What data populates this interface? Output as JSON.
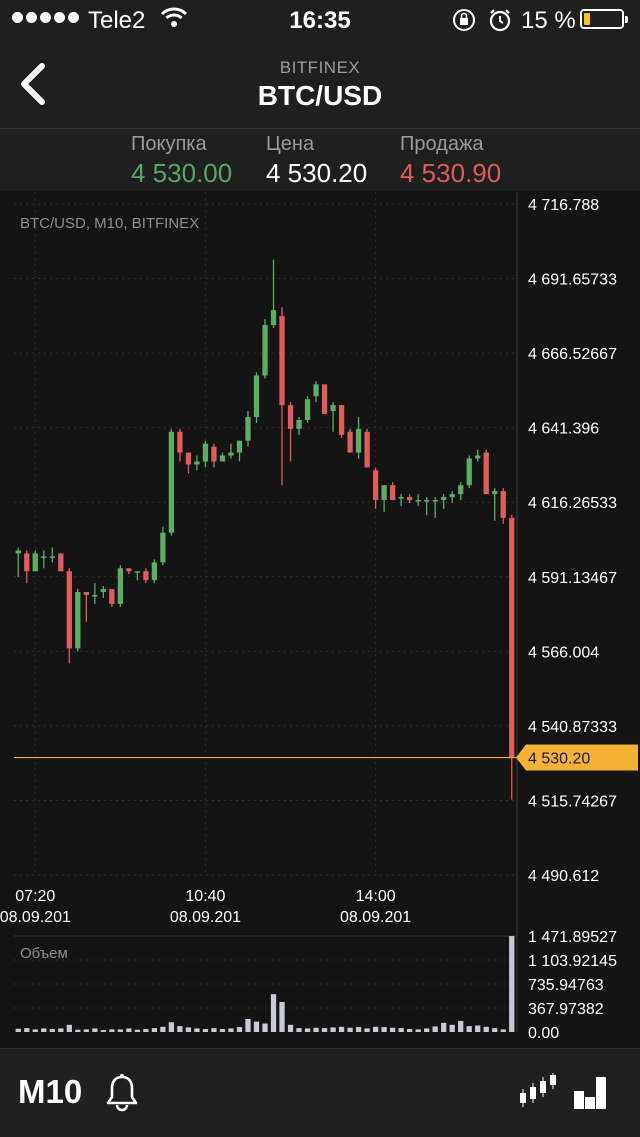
{
  "status_bar": {
    "carrier": "Tele2",
    "time": "16:35",
    "battery_percent": "15 %",
    "battery_level": 0.15,
    "icons": [
      "signal-dots-icon",
      "wifi-icon",
      "orientation-lock-icon",
      "alarm-icon",
      "battery-icon"
    ]
  },
  "nav": {
    "exchange": "BITFINEX",
    "pair": "BTC/USD",
    "back_icon": "chevron-left-icon"
  },
  "quotes": {
    "buy": {
      "label": "Покупка",
      "value": "4 530.00",
      "color": "#55a868"
    },
    "price": {
      "label": "Цена",
      "value": "4 530.20",
      "color": "#ffffff"
    },
    "sell": {
      "label": "Продажа",
      "value": "4 530.90",
      "color": "#e05a5a"
    }
  },
  "toolbar": {
    "timeframe": "M10",
    "icons": [
      "bell-icon",
      "candlestick-icon",
      "bar-chart-icon"
    ]
  },
  "colors": {
    "up": "#5aaf64",
    "down": "#e25c5c",
    "price_line": "#f5b237",
    "volume": "#c8cad8",
    "grid": "#2e2e2e"
  },
  "chart_data": [
    {
      "type": "candlestick",
      "title": "BTC/USD, M10, BITFINEX",
      "y_ticks": [
        "4 716.788",
        "4 691.65733",
        "4 666.52667",
        "4 641.396",
        "4 616.26533",
        "4 591.13467",
        "4 566.004",
        "4 540.87333",
        "4 515.74267",
        "4 490.612"
      ],
      "ylim": [
        4490.612,
        4716.788
      ],
      "x_ticks": [
        {
          "time": "07:20",
          "date": "08.09.201",
          "index": 2
        },
        {
          "time": "10:40",
          "date": "08.09.201",
          "index": 22
        },
        {
          "time": "14:00",
          "date": "08.09.201",
          "index": 42
        }
      ],
      "current_price": {
        "label": "4 530.20",
        "value": 4530.2
      },
      "candles": [
        {
          "o": 4599,
          "h": 4601,
          "l": 4591,
          "c": 4600
        },
        {
          "o": 4599,
          "h": 4600,
          "l": 4589,
          "c": 4593
        },
        {
          "o": 4593,
          "h": 4600,
          "l": 4593,
          "c": 4599
        },
        {
          "o": 4598,
          "h": 4600,
          "l": 4594,
          "c": 4598
        },
        {
          "o": 4598,
          "h": 4601,
          "l": 4596,
          "c": 4598
        },
        {
          "o": 4599,
          "h": 4599,
          "l": 4593,
          "c": 4593
        },
        {
          "o": 4593,
          "h": 4594,
          "l": 4562,
          "c": 4567
        },
        {
          "o": 4567,
          "h": 4587,
          "l": 4566,
          "c": 4586
        },
        {
          "o": 4586,
          "h": 4586,
          "l": 4576,
          "c": 4585
        },
        {
          "o": 4585,
          "h": 4589,
          "l": 4582,
          "c": 4585
        },
        {
          "o": 4586,
          "h": 4588,
          "l": 4584,
          "c": 4587
        },
        {
          "o": 4587,
          "h": 4587,
          "l": 4581,
          "c": 4582
        },
        {
          "o": 4582,
          "h": 4595,
          "l": 4581,
          "c": 4594
        },
        {
          "o": 4594,
          "h": 4594,
          "l": 4592,
          "c": 4593
        },
        {
          "o": 4593,
          "h": 4593,
          "l": 4590,
          "c": 4593
        },
        {
          "o": 4593,
          "h": 4594,
          "l": 4589,
          "c": 4590
        },
        {
          "o": 4590,
          "h": 4597,
          "l": 4589,
          "c": 4596
        },
        {
          "o": 4596,
          "h": 4608,
          "l": 4595,
          "c": 4606
        },
        {
          "o": 4606,
          "h": 4641,
          "l": 4605,
          "c": 4640
        },
        {
          "o": 4640,
          "h": 4641,
          "l": 4630,
          "c": 4633
        },
        {
          "o": 4633,
          "h": 4633,
          "l": 4626,
          "c": 4629
        },
        {
          "o": 4629,
          "h": 4632,
          "l": 4627,
          "c": 4630
        },
        {
          "o": 4630,
          "h": 4637,
          "l": 4628,
          "c": 4636
        },
        {
          "o": 4635,
          "h": 4636,
          "l": 4628,
          "c": 4630
        },
        {
          "o": 4630,
          "h": 4633,
          "l": 4630,
          "c": 4632
        },
        {
          "o": 4632,
          "h": 4636,
          "l": 4631,
          "c": 4633
        },
        {
          "o": 4633,
          "h": 4637,
          "l": 4630,
          "c": 4637
        },
        {
          "o": 4637,
          "h": 4647,
          "l": 4635,
          "c": 4645
        },
        {
          "o": 4645,
          "h": 4660,
          "l": 4643,
          "c": 4659
        },
        {
          "o": 4659,
          "h": 4678,
          "l": 4658,
          "c": 4676
        },
        {
          "o": 4676,
          "h": 4698,
          "l": 4675,
          "c": 4681
        },
        {
          "o": 4679,
          "h": 4682,
          "l": 4622,
          "c": 4649
        },
        {
          "o": 4649,
          "h": 4650,
          "l": 4630,
          "c": 4641
        },
        {
          "o": 4641,
          "h": 4645,
          "l": 4639,
          "c": 4644
        },
        {
          "o": 4644,
          "h": 4652,
          "l": 4643,
          "c": 4651
        },
        {
          "o": 4652,
          "h": 4657,
          "l": 4650,
          "c": 4656
        },
        {
          "o": 4656,
          "h": 4656,
          "l": 4646,
          "c": 4646
        },
        {
          "o": 4647,
          "h": 4650,
          "l": 4640,
          "c": 4649
        },
        {
          "o": 4649,
          "h": 4649,
          "l": 4638,
          "c": 4639
        },
        {
          "o": 4640,
          "h": 4641,
          "l": 4633,
          "c": 4633
        },
        {
          "o": 4633,
          "h": 4645,
          "l": 4631,
          "c": 4641
        },
        {
          "o": 4640,
          "h": 4641,
          "l": 4628,
          "c": 4628
        },
        {
          "o": 4627,
          "h": 4628,
          "l": 4614,
          "c": 4617
        },
        {
          "o": 4617,
          "h": 4622,
          "l": 4613,
          "c": 4622
        },
        {
          "o": 4622,
          "h": 4623,
          "l": 4617,
          "c": 4617
        },
        {
          "o": 4618,
          "h": 4619,
          "l": 4615,
          "c": 4618
        },
        {
          "o": 4618,
          "h": 4619,
          "l": 4616,
          "c": 4617
        },
        {
          "o": 4617,
          "h": 4619,
          "l": 4615,
          "c": 4617
        },
        {
          "o": 4617,
          "h": 4618,
          "l": 4612,
          "c": 4617
        },
        {
          "o": 4617,
          "h": 4618,
          "l": 4611,
          "c": 4617
        },
        {
          "o": 4617,
          "h": 4619,
          "l": 4614,
          "c": 4618
        },
        {
          "o": 4618,
          "h": 4620,
          "l": 4616,
          "c": 4619
        },
        {
          "o": 4619,
          "h": 4623,
          "l": 4617,
          "c": 4622
        },
        {
          "o": 4622,
          "h": 4632,
          "l": 4621,
          "c": 4631
        },
        {
          "o": 4631,
          "h": 4634,
          "l": 4630,
          "c": 4632
        },
        {
          "o": 4633,
          "h": 4634,
          "l": 4619,
          "c": 4619
        },
        {
          "o": 4619,
          "h": 4621,
          "l": 4610,
          "c": 4620
        },
        {
          "o": 4620,
          "h": 4621,
          "l": 4609,
          "c": 4611
        },
        {
          "o": 4611,
          "h": 4612,
          "l": 4516,
          "c": 4530
        }
      ]
    },
    {
      "type": "bar",
      "title": "Объем",
      "y_ticks": [
        "1 471.89527",
        "1 103.92145",
        "735.94763",
        "367.97382",
        "0.00"
      ],
      "ylim": [
        0,
        1471.89527
      ],
      "values": [
        50,
        60,
        40,
        55,
        45,
        55,
        110,
        35,
        40,
        55,
        30,
        40,
        40,
        55,
        35,
        45,
        60,
        80,
        150,
        90,
        70,
        55,
        45,
        60,
        45,
        55,
        75,
        200,
        160,
        130,
        580,
        460,
        110,
        60,
        55,
        65,
        60,
        70,
        80,
        65,
        75,
        55,
        80,
        75,
        65,
        60,
        45,
        40,
        55,
        85,
        140,
        110,
        170,
        90,
        100,
        80,
        60,
        40,
        1471
      ]
    }
  ]
}
